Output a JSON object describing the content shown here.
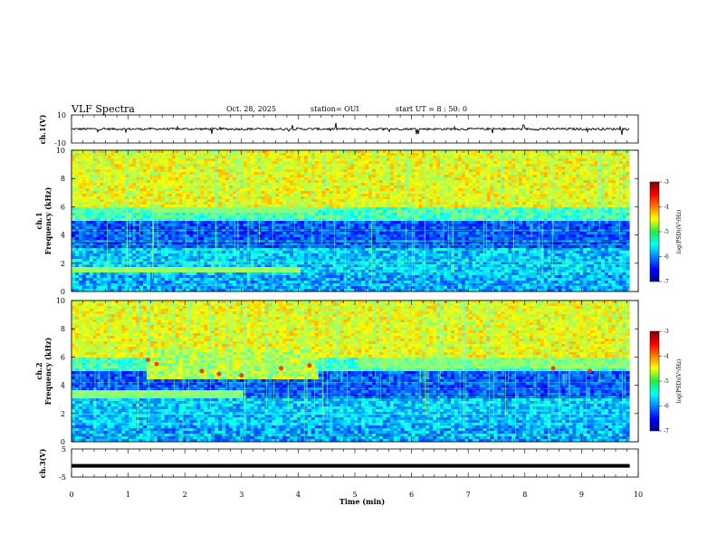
{
  "header": {
    "title": "VLF Spectra",
    "date": "Oct. 28, 2025",
    "station": "station= OUI",
    "start": "start UT =  8 : 50: 0"
  },
  "chart_data": [
    {
      "type": "line",
      "id": "ch1-waveform",
      "ylabel": "ch.1(V)",
      "ylim": [
        -10,
        10
      ],
      "yticks": [
        "10",
        "-10"
      ],
      "description_level": 0.0
    },
    {
      "type": "heatmap",
      "id": "ch1-spectrogram",
      "ylabel": "ch.1\nFrequency (kHz)",
      "ylim": [
        0,
        10
      ],
      "yticks": [
        "0",
        "2",
        "4",
        "6",
        "8",
        "10"
      ],
      "colorbar": {
        "label": "log(PSD)(V²/Hz)",
        "range": [
          -7,
          -3
        ],
        "ticks": [
          "-3",
          "-4",
          "-5",
          "-6",
          "-7"
        ]
      }
    },
    {
      "type": "heatmap",
      "id": "ch2-spectrogram",
      "ylabel": "ch.2\nFrequency (kHz)",
      "ylim": [
        0,
        10
      ],
      "yticks": [
        "0",
        "2",
        "4",
        "6",
        "8",
        "10"
      ],
      "colorbar": {
        "label": "log(PSD)(V²/Hz)",
        "range": [
          -7,
          -3
        ],
        "ticks": [
          "-3",
          "-4",
          "-5",
          "-6",
          "-7"
        ]
      }
    },
    {
      "type": "line",
      "id": "ch3-waveform",
      "ylabel": "ch.3(V)",
      "ylim": [
        -5,
        5
      ],
      "yticks": [
        "5",
        "-5"
      ],
      "level": -1.0
    }
  ],
  "xaxis": {
    "label": "Time (min)",
    "range": [
      0,
      10
    ],
    "ticks": [
      "0",
      "1",
      "2",
      "3",
      "4",
      "5",
      "6",
      "7",
      "8",
      "9",
      "10"
    ],
    "data_end": 9.85
  },
  "labels": {
    "ch1_wave": "ch.1(V)",
    "ch1_spec_a": "ch.1",
    "ch1_spec_b": "Frequency (kHz)",
    "ch2_spec_a": "ch.2",
    "ch2_spec_b": "Frequency (kHz)",
    "ch3_wave": "ch.3(V)",
    "cb1": "log(PSD)(V²/Hz)",
    "cb2": "log(PSD)(V²/Hz)"
  }
}
